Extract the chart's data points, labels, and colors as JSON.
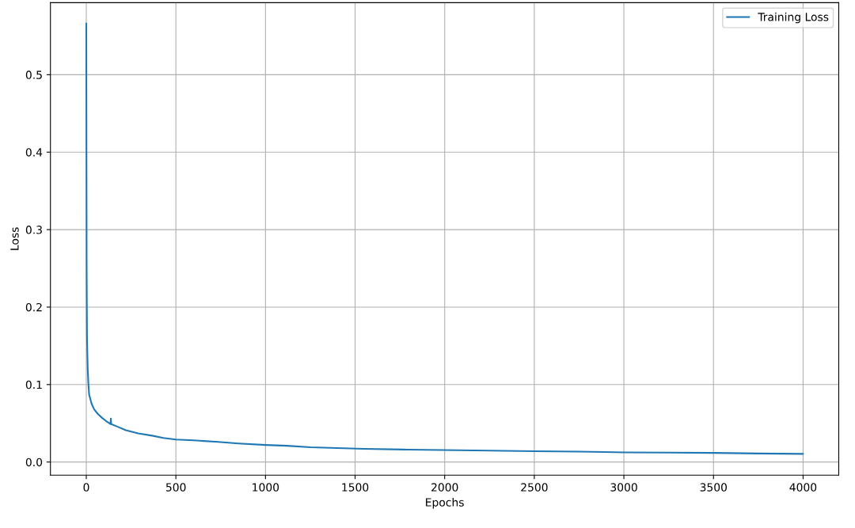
{
  "chart_data": {
    "type": "line",
    "xlabel": "Epochs",
    "ylabel": "Loss",
    "series": [
      {
        "name": "Training Loss",
        "color": "#1f77b4",
        "x": [
          0,
          1,
          2,
          4,
          8,
          12,
          16,
          30,
          44,
          65,
          88,
          110,
          135,
          137,
          139,
          170,
          221,
          290,
          368,
          430,
          501,
          600,
          737,
          850,
          1002,
          1120,
          1252,
          1400,
          1547,
          1800,
          2166,
          2505,
          2750,
          3006,
          3250,
          3500,
          3750,
          3999
        ],
        "values": [
          0.566,
          0.4,
          0.25,
          0.16,
          0.12,
          0.1,
          0.087,
          0.075,
          0.068,
          0.062,
          0.057,
          0.053,
          0.049,
          0.056,
          0.049,
          0.046,
          0.041,
          0.037,
          0.034,
          0.031,
          0.029,
          0.028,
          0.026,
          0.024,
          0.022,
          0.021,
          0.019,
          0.018,
          0.017,
          0.016,
          0.015,
          0.014,
          0.0135,
          0.0125,
          0.0122,
          0.0118,
          0.011,
          0.0105
        ]
      }
    ],
    "xlim": [
      -200,
      4199
    ],
    "xticks": [
      0,
      500,
      1000,
      1500,
      2000,
      2500,
      3000,
      3500,
      4000
    ],
    "ylim": [
      -0.017,
      0.593
    ],
    "yticks": [
      {
        "value": 0,
        "label": "0.0"
      },
      0.1,
      0.2,
      0.3,
      0.4,
      0.5
    ],
    "grid": true,
    "legend": "top right"
  }
}
